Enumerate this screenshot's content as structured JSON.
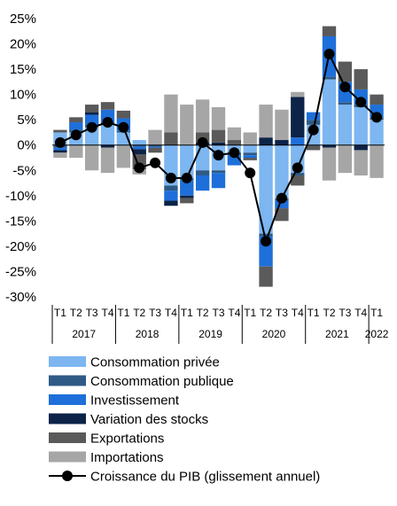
{
  "chart_data": {
    "type": "bar",
    "stacked": true,
    "ylim": [
      -30,
      25
    ],
    "yticks": [
      25,
      20,
      15,
      10,
      5,
      0,
      -5,
      -10,
      -15,
      -20,
      -25,
      -30
    ],
    "ytick_labels": [
      "25%",
      "20%",
      "15%",
      "10%",
      "5%",
      "0%",
      "-5%",
      "-10%",
      "-15%",
      "-20%",
      "-25%",
      "-30%"
    ],
    "categories": [
      "T1",
      "T2",
      "T3",
      "T4",
      "T1",
      "T2",
      "T3",
      "T4",
      "T1",
      "T2",
      "T3",
      "T4",
      "T1",
      "T2",
      "T3",
      "T4",
      "T1",
      "T2",
      "T3",
      "T4",
      "T1"
    ],
    "years": [
      {
        "label": "2017",
        "quarters": 4
      },
      {
        "label": "2018",
        "quarters": 4
      },
      {
        "label": "2019",
        "quarters": 4
      },
      {
        "label": "2020",
        "quarters": 4
      },
      {
        "label": "2021",
        "quarters": 4
      },
      {
        "label": "2022",
        "quarters": 1
      }
    ],
    "series": [
      {
        "name": "Consommation privée",
        "color": "#7db6f0",
        "values": [
          2.5,
          2.5,
          3.5,
          4.0,
          2.5,
          1.0,
          0.0,
          -8.0,
          -6.5,
          -5.0,
          -5.0,
          -1.5,
          -1.5,
          -17.5,
          -10.5,
          -5.5,
          4.0,
          13.0,
          8.0,
          7.5,
          5.0
        ]
      },
      {
        "name": "Consommation publique",
        "color": "#2f5a86",
        "values": [
          -0.5,
          0.5,
          0.5,
          0.5,
          0.3,
          -0.3,
          -0.3,
          -1.0,
          -0.5,
          -1.0,
          -0.5,
          -0.5,
          -0.5,
          -0.5,
          -0.5,
          -0.5,
          1.0,
          0.5,
          0.5,
          0.5,
          0.5
        ]
      },
      {
        "name": "Investissement",
        "color": "#1e6fd9",
        "values": [
          -0.5,
          1.5,
          2.0,
          2.5,
          2.5,
          -0.5,
          -0.2,
          -2.0,
          -3.0,
          -3.0,
          -3.0,
          -2.0,
          -0.5,
          -6.0,
          -1.5,
          1.5,
          1.5,
          8.0,
          4.0,
          3.0,
          2.5
        ]
      },
      {
        "name": "Variation des stocks",
        "color": "#0d2347",
        "values": [
          -0.5,
          0.0,
          0.5,
          -0.5,
          0.0,
          -1.0,
          0.0,
          -1.0,
          -0.5,
          0.5,
          0.5,
          0.0,
          0.0,
          1.5,
          1.0,
          8.0,
          0.0,
          -0.5,
          0.0,
          -1.0,
          0.0
        ]
      },
      {
        "name": "Exportations",
        "color": "#5a5a5a",
        "values": [
          0.5,
          1.0,
          1.5,
          1.5,
          1.5,
          -3.0,
          -1.0,
          2.5,
          -1.0,
          2.0,
          2.5,
          1.0,
          -0.5,
          -4.0,
          -2.5,
          -2.0,
          -1.0,
          2.0,
          4.0,
          4.0,
          2.0
        ]
      },
      {
        "name": "Importations",
        "color": "#a6a6a6",
        "values": [
          -1.0,
          -2.5,
          -5.0,
          -5.0,
          -4.5,
          -1.0,
          3.0,
          7.5,
          8.0,
          6.5,
          4.5,
          2.5,
          2.5,
          6.5,
          6.0,
          1.0,
          0.0,
          -6.5,
          -5.5,
          -5.0,
          -6.5
        ]
      }
    ],
    "line": {
      "name": "Croissance du PIB (glissement annuel)",
      "color": "#000000",
      "values": [
        0.5,
        2.0,
        3.5,
        4.5,
        3.5,
        -4.5,
        -3.5,
        -6.5,
        -6.5,
        0.5,
        -2.0,
        -1.5,
        -5.5,
        -19.0,
        -10.5,
        -4.5,
        3.0,
        18.0,
        11.5,
        8.5,
        5.5
      ]
    },
    "legend_position": "bottom",
    "grid": false
  }
}
